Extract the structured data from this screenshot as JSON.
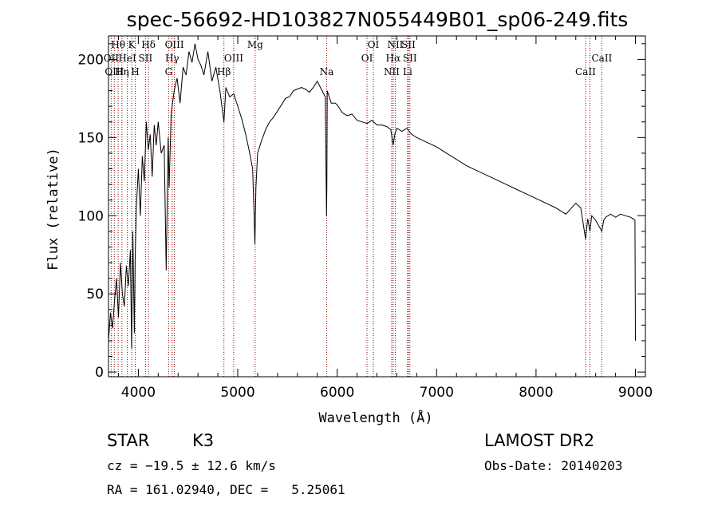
{
  "chart_data": {
    "type": "line",
    "title": "spec-56692-HD103827N055449B01_sp06-249.fits",
    "xlabel": "Wavelength (Å)",
    "ylabel": "Flux (relative)",
    "xlim": [
      3700,
      9100
    ],
    "ylim": [
      -3,
      215
    ],
    "xticks": [
      4000,
      5000,
      6000,
      7000,
      8000,
      9000
    ],
    "yticks": [
      0,
      50,
      100,
      150,
      200
    ],
    "grid": false,
    "legend": "none",
    "line_color": "#000000",
    "marker_color": "#8b0000",
    "series": [
      {
        "x": [
          3700,
          3720,
          3740,
          3760,
          3780,
          3800,
          3820,
          3840,
          3860,
          3880,
          3900,
          3920,
          3933,
          3945,
          3960,
          3968,
          3980,
          4000,
          4020,
          4040,
          4060,
          4080,
          4100,
          4120,
          4140,
          4160,
          4180,
          4200,
          4230,
          4260,
          4280,
          4300,
          4310,
          4330,
          4360,
          4390,
          4420,
          4450,
          4480,
          4510,
          4540,
          4570,
          4600,
          4630,
          4660,
          4700,
          4740,
          4780,
          4820,
          4861,
          4880,
          4920,
          4960,
          5000,
          5040,
          5080,
          5120,
          5150,
          5167,
          5172,
          5183,
          5200,
          5240,
          5280,
          5320,
          5360,
          5400,
          5440,
          5480,
          5520,
          5560,
          5600,
          5640,
          5680,
          5720,
          5760,
          5800,
          5840,
          5880,
          5890,
          5893,
          5896,
          5900,
          5940,
          5980,
          6000,
          6050,
          6100,
          6150,
          6200,
          6250,
          6300,
          6350,
          6400,
          6450,
          6500,
          6540,
          6563,
          6580,
          6600,
          6650,
          6700,
          6750,
          6800,
          6900,
          7000,
          7100,
          7200,
          7300,
          7400,
          7500,
          7600,
          7700,
          7800,
          7900,
          8000,
          8100,
          8200,
          8300,
          8400,
          8450,
          8498,
          8520,
          8542,
          8560,
          8600,
          8662,
          8680,
          8700,
          8750,
          8800,
          8850,
          8900,
          8950,
          8980,
          8995,
          9000
        ],
        "y": [
          20,
          38,
          28,
          45,
          60,
          35,
          70,
          50,
          42,
          68,
          55,
          78,
          15,
          90,
          25,
          72,
          105,
          130,
          100,
          138,
          122,
          160,
          142,
          152,
          125,
          158,
          145,
          160,
          140,
          145,
          65,
          150,
          118,
          165,
          180,
          188,
          172,
          195,
          190,
          205,
          198,
          210,
          200,
          196,
          190,
          205,
          186,
          195,
          180,
          160,
          182,
          176,
          178,
          170,
          162,
          152,
          140,
          130,
          95,
          82,
          118,
          140,
          148,
          155,
          160,
          163,
          167,
          171,
          175,
          176,
          180,
          181,
          182,
          181,
          179,
          182,
          186,
          181,
          176,
          120,
          100,
          118,
          180,
          172,
          172,
          171,
          166,
          164,
          165,
          161,
          160,
          159,
          161,
          158,
          158,
          157,
          155,
          145,
          152,
          156,
          154,
          156,
          152,
          150,
          147,
          144,
          140,
          136,
          132,
          129,
          126,
          123,
          120,
          117,
          114,
          111,
          108,
          105,
          101,
          108,
          105,
          85,
          98,
          90,
          100,
          97,
          90,
          97,
          99,
          101,
          99,
          101,
          100,
          99,
          98,
          97,
          20
        ]
      }
    ],
    "spectral_lines": [
      {
        "name": "Hθ",
        "wavelength": 3797,
        "row": 0
      },
      {
        "name": "OII",
        "wavelength": 3727,
        "row": 1
      },
      {
        "name": "OIII",
        "wavelength": 3759,
        "row": 2
      },
      {
        "name": "K",
        "wavelength": 3934,
        "row": 0
      },
      {
        "name": "HeI",
        "wavelength": 3889,
        "row": 1
      },
      {
        "name": "Hη",
        "wavelength": 3835,
        "row": 2
      },
      {
        "name": "Hδ",
        "wavelength": 4102,
        "row": 0
      },
      {
        "name": "SII",
        "wavelength": 4072,
        "row": 1
      },
      {
        "name": "H",
        "wavelength": 3969,
        "row": 2
      },
      {
        "name": "OIII",
        "wavelength": 4363,
        "row": 0
      },
      {
        "name": "Hγ",
        "wavelength": 4340,
        "row": 1
      },
      {
        "name": "G",
        "wavelength": 4305,
        "row": 2
      },
      {
        "name": "OIII",
        "wavelength": 4959,
        "row": 1
      },
      {
        "name": "Hβ",
        "wavelength": 4861,
        "row": 2
      },
      {
        "name": "Mg",
        "wavelength": 5175,
        "row": 0
      },
      {
        "name": "Na",
        "wavelength": 5894,
        "row": 2
      },
      {
        "name": "OI",
        "wavelength": 6364,
        "row": 0
      },
      {
        "name": "OI",
        "wavelength": 6300,
        "row": 1
      },
      {
        "name": "NII",
        "wavelength": 6584,
        "row": 0
      },
      {
        "name": "SII",
        "wavelength": 6717,
        "row": 0
      },
      {
        "name": "Hα",
        "wavelength": 6563,
        "row": 1
      },
      {
        "name": "SII",
        "wavelength": 6731,
        "row": 1
      },
      {
        "name": "NII",
        "wavelength": 6548,
        "row": 2
      },
      {
        "name": "Li",
        "wavelength": 6708,
        "row": 2
      },
      {
        "name": "CaII",
        "wavelength": 8662,
        "row": 1
      },
      {
        "name": "CaII",
        "wavelength": 8498,
        "row": 2
      }
    ],
    "extra_marker_wavelengths": [
      8542
    ]
  },
  "info": {
    "object_type": "STAR",
    "spectral_class": "K3",
    "survey": "LAMOST DR2",
    "cz": "cz = −19.5 ± 12.6 km/s",
    "obs_date": "Obs-Date: 20140203",
    "coords": "RA = 161.02940, DEC =   5.25061"
  }
}
